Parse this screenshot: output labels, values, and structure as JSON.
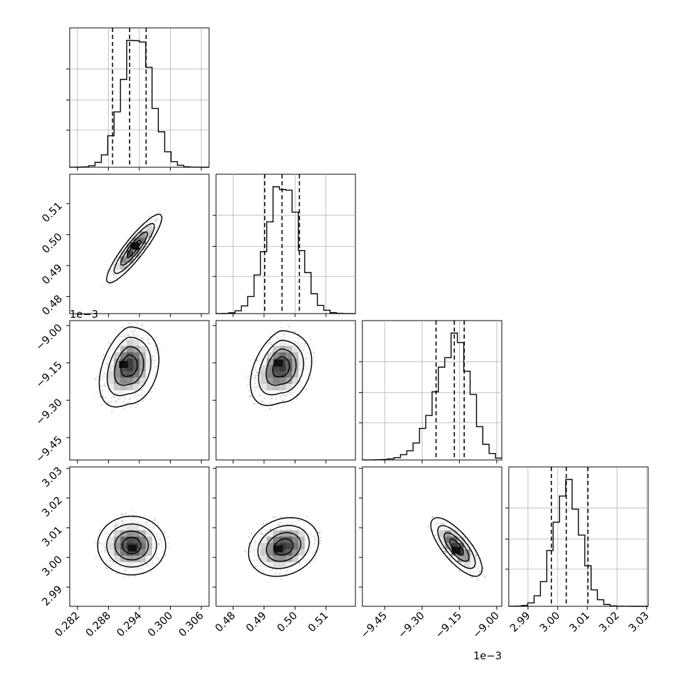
{
  "chart_data": {
    "type": "corner",
    "title": "",
    "parameters": [
      {
        "xlim": [
          0.2805,
          0.3075
        ],
        "ticks": [
          0.282,
          0.288,
          0.294,
          0.3,
          0.306
        ],
        "tick_labels": [
          "0.282",
          "0.288",
          "0.294",
          "0.300",
          "0.306"
        ],
        "offset_text": ""
      },
      {
        "xlim": [
          0.4745,
          0.5195
        ],
        "ticks": [
          0.48,
          0.49,
          0.5,
          0.51
        ],
        "tick_labels": [
          "0.48",
          "0.49",
          "0.50",
          "0.51"
        ],
        "offset_text": ""
      },
      {
        "xlim": [
          -9.54,
          -8.98
        ],
        "ticks": [
          -9.45,
          -9.3,
          -9.15,
          -9.0
        ],
        "tick_labels": [
          "−9.45",
          "−9.30",
          "−9.15",
          "−9.00"
        ],
        "offset_text": "1e−3"
      },
      {
        "xlim": [
          2.9835,
          3.0305
        ],
        "ticks": [
          2.99,
          3.0,
          3.01,
          3.02,
          3.03
        ],
        "tick_labels": [
          "2.99",
          "3.00",
          "3.01",
          "3.02",
          "3.03"
        ],
        "offset_text": ""
      }
    ],
    "histograms": [
      {
        "index": 0,
        "quantiles": [
          0.2888,
          0.2921,
          0.2953
        ],
        "mean": 0.2935,
        "sd": 0.0029,
        "peak": 1.0
      },
      {
        "index": 1,
        "quantiles": [
          0.4902,
          0.4958,
          0.5014
        ],
        "mean": 0.4961,
        "sd": 0.0052,
        "peak": 1.0
      },
      {
        "index": 2,
        "quantiles": [
          -9.244,
          -9.171,
          -9.131
        ],
        "mean": -9.165,
        "sd": 0.06,
        "skew_left": true,
        "peak": 1.0
      },
      {
        "index": 3,
        "quantiles": [
          2.9979,
          3.0029,
          3.0102
        ],
        "mean": 3.0033,
        "sd": 0.0046,
        "peak": 1.0
      }
    ],
    "densities": [
      {
        "x": 0,
        "y": 1,
        "center": [
          0.293,
          0.4955
        ],
        "sd": [
          0.0026,
          0.0054
        ],
        "correlation": 0.9,
        "core": [
          0.2935,
          0.4965
        ]
      },
      {
        "x": 0,
        "y": 2,
        "center": [
          0.292,
          -9.16
        ],
        "sd": [
          0.0028,
          0.075
        ],
        "curved": true,
        "core": [
          0.2913,
          -9.155
        ]
      },
      {
        "x": 1,
        "y": 2,
        "center": [
          0.4955,
          -9.165
        ],
        "sd": [
          0.0048,
          0.07
        ],
        "curved": true,
        "core": [
          0.4953,
          -9.15
        ]
      },
      {
        "x": 0,
        "y": 3,
        "center": [
          0.2925,
          3.004
        ],
        "sd": [
          0.0032,
          0.0048
        ],
        "correlation": 0.0,
        "core": [
          0.293,
          3.0032
        ]
      },
      {
        "x": 1,
        "y": 3,
        "center": [
          0.4963,
          3.0035
        ],
        "sd": [
          0.0055,
          0.0048
        ],
        "correlation": 0.2,
        "core": [
          0.4953,
          3.003
        ]
      },
      {
        "x": 2,
        "y": 3,
        "center": [
          -9.162,
          3.0035
        ],
        "sd": [
          0.05,
          0.0048
        ],
        "correlation": -0.75,
        "core": [
          -9.155,
          3.0025
        ]
      }
    ],
    "grid": true,
    "colors": {
      "line": "#000000",
      "grid": "#b0b0b0",
      "points": "#7a7a7a"
    }
  }
}
